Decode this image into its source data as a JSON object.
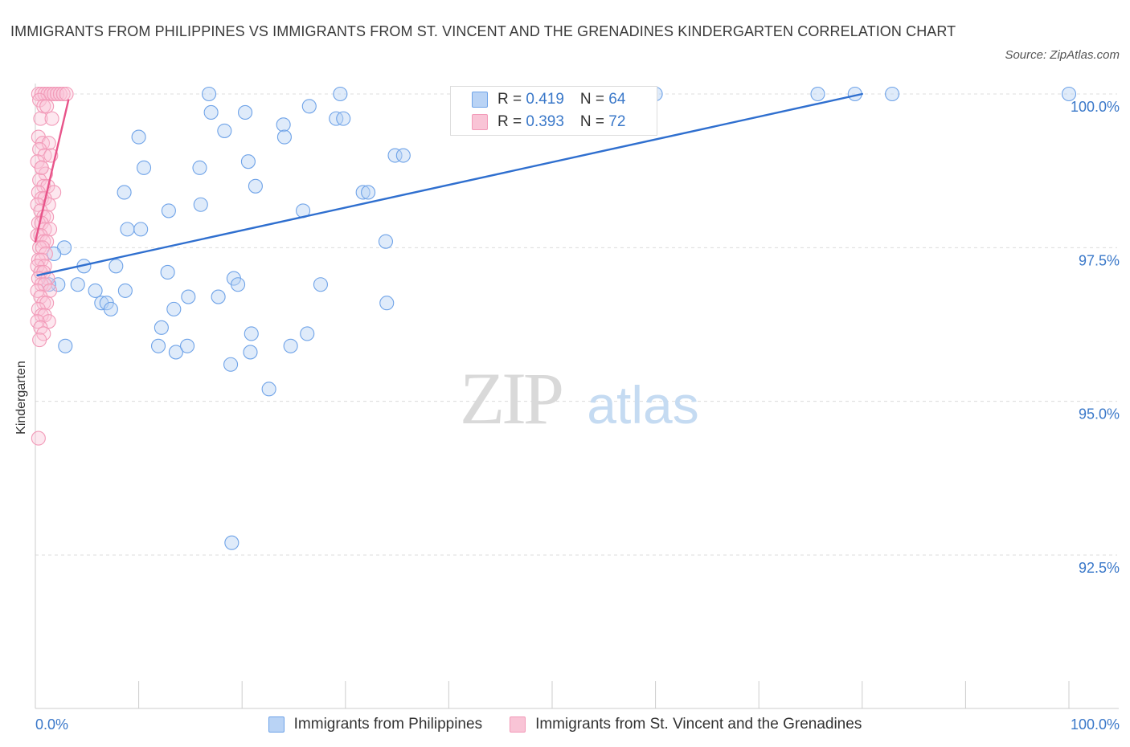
{
  "title": "IMMIGRANTS FROM PHILIPPINES VS IMMIGRANTS FROM ST. VINCENT AND THE GRENADINES KINDERGARTEN CORRELATION CHART",
  "source": "Source: ZipAtlas.com",
  "watermark": {
    "zip": "ZIP",
    "atlas": "atlas"
  },
  "legend": {
    "rows": [
      {
        "r_label": "R = ",
        "r_value": "0.419",
        "n_label": "N = ",
        "n_value": "64"
      },
      {
        "r_label": "R = ",
        "r_value": "0.393",
        "n_label": "N = ",
        "n_value": "72"
      }
    ]
  },
  "chart_data": {
    "type": "scatter",
    "title": "IMMIGRANTS FROM PHILIPPINES VS IMMIGRANTS FROM ST. VINCENT AND THE GRENADINES KINDERGARTEN CORRELATION CHART",
    "xlabel": "",
    "ylabel": "Kindergarten",
    "xlim": [
      0,
      100
    ],
    "ylim": [
      90.0,
      100.2
    ],
    "x_tick_labels": [
      "0.0%",
      "100.0%"
    ],
    "y_ticks": [
      92.5,
      95.0,
      97.5,
      100.0
    ],
    "y_tick_labels": [
      "92.5%",
      "95.0%",
      "97.5%",
      "100.0%"
    ],
    "grid": "horizontal dashed",
    "legend_position": "bottom",
    "colors": {
      "philippines": "#6fa3e8",
      "philippines_line": "#2f6fcf",
      "st_vincent": "#f29ab8",
      "st_vincent_line": "#e8548a",
      "tick_label": "#3a78c9"
    },
    "series": [
      {
        "name": "Immigrants from Philippines",
        "r": 0.419,
        "n": 64,
        "trend": {
          "x": [
            0.2,
            80.0
          ],
          "y": [
            97.05,
            100.0
          ]
        },
        "points": [
          [
            16.8,
            100.0
          ],
          [
            29.5,
            100.0
          ],
          [
            59.0,
            100.0
          ],
          [
            60.0,
            100.0
          ],
          [
            75.7,
            100.0
          ],
          [
            79.3,
            100.0
          ],
          [
            82.9,
            100.0
          ],
          [
            100.0,
            100.0
          ],
          [
            17.0,
            99.7
          ],
          [
            20.3,
            99.7
          ],
          [
            26.5,
            99.8
          ],
          [
            29.1,
            99.6
          ],
          [
            29.8,
            99.6
          ],
          [
            24.0,
            99.5
          ],
          [
            18.3,
            99.4
          ],
          [
            10.0,
            99.3
          ],
          [
            24.1,
            99.3
          ],
          [
            34.8,
            99.0
          ],
          [
            35.6,
            99.0
          ],
          [
            20.6,
            98.9
          ],
          [
            10.5,
            98.8
          ],
          [
            15.9,
            98.8
          ],
          [
            21.3,
            98.5
          ],
          [
            8.6,
            98.4
          ],
          [
            31.7,
            98.4
          ],
          [
            32.2,
            98.4
          ],
          [
            16.0,
            98.2
          ],
          [
            12.9,
            98.1
          ],
          [
            25.9,
            98.1
          ],
          [
            8.9,
            97.8
          ],
          [
            10.2,
            97.8
          ],
          [
            33.9,
            97.6
          ],
          [
            2.8,
            97.5
          ],
          [
            1.8,
            97.4
          ],
          [
            4.7,
            97.2
          ],
          [
            7.8,
            97.2
          ],
          [
            12.8,
            97.1
          ],
          [
            19.2,
            97.0
          ],
          [
            19.6,
            96.9
          ],
          [
            27.6,
            96.9
          ],
          [
            5.8,
            96.8
          ],
          [
            4.1,
            96.9
          ],
          [
            2.2,
            96.9
          ],
          [
            1.3,
            96.9
          ],
          [
            8.7,
            96.8
          ],
          [
            14.8,
            96.7
          ],
          [
            17.7,
            96.7
          ],
          [
            6.4,
            96.6
          ],
          [
            6.9,
            96.6
          ],
          [
            7.3,
            96.5
          ],
          [
            13.4,
            96.5
          ],
          [
            34.0,
            96.6
          ],
          [
            26.3,
            96.1
          ],
          [
            12.2,
            96.2
          ],
          [
            20.9,
            96.1
          ],
          [
            24.7,
            95.9
          ],
          [
            2.9,
            95.9
          ],
          [
            11.9,
            95.9
          ],
          [
            13.6,
            95.8
          ],
          [
            20.8,
            95.8
          ],
          [
            14.7,
            95.9
          ],
          [
            18.9,
            95.6
          ],
          [
            22.6,
            95.2
          ],
          [
            19.0,
            92.7
          ]
        ]
      },
      {
        "name": "Immigrants from St. Vincent and the Grenadines",
        "r": 0.393,
        "n": 72,
        "trend": {
          "x": [
            0.0,
            3.2
          ],
          "y": [
            97.6,
            99.9
          ]
        },
        "points": [
          [
            0.3,
            100.0
          ],
          [
            0.6,
            100.0
          ],
          [
            0.9,
            100.0
          ],
          [
            1.2,
            100.0
          ],
          [
            1.5,
            100.0
          ],
          [
            1.8,
            100.0
          ],
          [
            2.1,
            100.0
          ],
          [
            2.4,
            100.0
          ],
          [
            2.7,
            100.0
          ],
          [
            3.0,
            100.0
          ],
          [
            0.4,
            99.9
          ],
          [
            0.8,
            99.8
          ],
          [
            1.1,
            99.8
          ],
          [
            0.5,
            99.6
          ],
          [
            1.6,
            99.6
          ],
          [
            0.3,
            99.3
          ],
          [
            0.7,
            99.2
          ],
          [
            1.3,
            99.2
          ],
          [
            0.4,
            99.1
          ],
          [
            0.9,
            99.0
          ],
          [
            1.5,
            99.0
          ],
          [
            0.2,
            98.9
          ],
          [
            0.6,
            98.8
          ],
          [
            1.0,
            98.7
          ],
          [
            0.4,
            98.6
          ],
          [
            0.8,
            98.5
          ],
          [
            1.2,
            98.5
          ],
          [
            1.8,
            98.4
          ],
          [
            0.3,
            98.4
          ],
          [
            0.6,
            98.3
          ],
          [
            0.9,
            98.3
          ],
          [
            1.3,
            98.2
          ],
          [
            0.2,
            98.2
          ],
          [
            0.5,
            98.1
          ],
          [
            0.8,
            98.0
          ],
          [
            1.1,
            98.0
          ],
          [
            0.3,
            97.9
          ],
          [
            0.6,
            97.9
          ],
          [
            0.9,
            97.8
          ],
          [
            1.4,
            97.8
          ],
          [
            0.2,
            97.7
          ],
          [
            0.5,
            97.7
          ],
          [
            0.8,
            97.6
          ],
          [
            1.1,
            97.6
          ],
          [
            0.4,
            97.5
          ],
          [
            0.7,
            97.5
          ],
          [
            1.0,
            97.4
          ],
          [
            0.3,
            97.3
          ],
          [
            0.6,
            97.3
          ],
          [
            0.9,
            97.2
          ],
          [
            0.2,
            97.2
          ],
          [
            0.5,
            97.1
          ],
          [
            0.8,
            97.1
          ],
          [
            1.2,
            97.0
          ],
          [
            0.3,
            97.0
          ],
          [
            0.6,
            96.9
          ],
          [
            0.9,
            96.9
          ],
          [
            1.4,
            96.8
          ],
          [
            0.2,
            96.8
          ],
          [
            0.5,
            96.7
          ],
          [
            0.8,
            96.6
          ],
          [
            1.1,
            96.6
          ],
          [
            0.3,
            96.5
          ],
          [
            0.6,
            96.4
          ],
          [
            0.9,
            96.4
          ],
          [
            1.3,
            96.3
          ],
          [
            0.2,
            96.3
          ],
          [
            0.5,
            96.2
          ],
          [
            0.8,
            96.1
          ],
          [
            0.4,
            96.0
          ],
          [
            0.3,
            94.4
          ],
          [
            0.6,
            98.8
          ]
        ]
      }
    ]
  },
  "bottom_legend": {
    "items": [
      "Immigrants from Philippines",
      "Immigrants from St. Vincent and the Grenadines"
    ]
  }
}
